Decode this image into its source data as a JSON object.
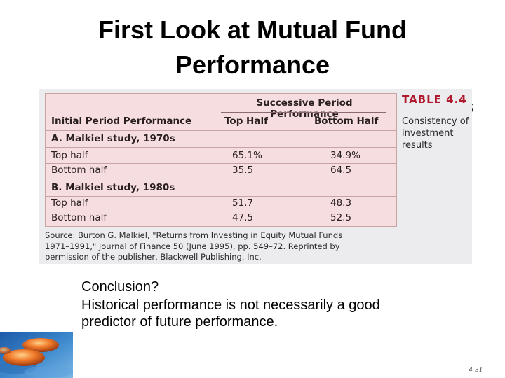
{
  "slide": {
    "title_line1": "First Look at Mutual Fund",
    "title_line2": "Performance",
    "obscured_text": "s",
    "page_number": "4-51"
  },
  "table": {
    "number": "TABLE 4.4",
    "caption": "Consistency of investment results",
    "group_header": "Successive Period Performance",
    "columns": [
      "Initial Period Performance",
      "Top Half",
      "Bottom Half"
    ],
    "sections": [
      {
        "title": "A. Malkiel study, 1970s",
        "rows": [
          {
            "label": "Top half",
            "top": "65.1%",
            "bottom": "34.9%"
          },
          {
            "label": "Bottom half",
            "top": "35.5",
            "bottom": "64.5"
          }
        ]
      },
      {
        "title": "B. Malkiel study, 1980s",
        "rows": [
          {
            "label": "Top half",
            "top": "51.7",
            "bottom": "48.3"
          },
          {
            "label": "Bottom half",
            "top": "47.5",
            "bottom": "52.5"
          }
        ]
      }
    ],
    "source_line1": "Source: Burton G. Malkiel, \"Returns from Investing in Equity Mutual Funds",
    "source_line2": "1971–1991,\" Journal of Finance 50 (June 1995), pp. 549–72. Reprinted by",
    "source_line3": "permission of the publisher, Blackwell Publishing, Inc."
  },
  "conclusion": {
    "question": "Conclusion?",
    "answer_line1": "Historical performance is not necessarily a good",
    "answer_line2": "predictor of future performance."
  },
  "colors": {
    "table_fill": "#f6dde0",
    "table_border": "#c9a2a6",
    "table_number": "#b01a2e",
    "figure_bg": "#ececee"
  }
}
